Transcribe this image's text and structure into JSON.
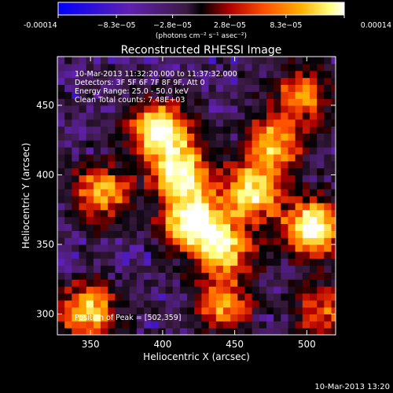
{
  "chart_data": {
    "type": "heatmap",
    "title": "Reconstructed RHESSI Image",
    "xlabel": "Heliocentric X (arcsec)",
    "ylabel": "Heliocentric Y (arcsec)",
    "xlim": [
      327,
      520
    ],
    "ylim": [
      285,
      485
    ],
    "x_ticks": [
      350,
      400,
      450,
      500
    ],
    "y_ticks": [
      300,
      350,
      400,
      450
    ],
    "colorbar": {
      "min": -0.00014,
      "max": 0.00014,
      "ticks": [
        {
          "value": -0.00014,
          "label": "-0.00014"
        },
        {
          "value": -8.3e-05,
          "label": "−8.3e−05"
        },
        {
          "value": -2.8e-05,
          "label": "−2.8e−05"
        },
        {
          "value": 2.8e-05,
          "label": "2.8e−05"
        },
        {
          "value": 8.3e-05,
          "label": "8.3e−05"
        },
        {
          "value": 0.00014,
          "label": "0.00014"
        }
      ],
      "unit_label": "(photons cm⁻² s⁻¹ asec⁻²)",
      "colormap": [
        "#0000ff",
        "#6020b0",
        "#3a1a40",
        "#000000",
        "#b00000",
        "#ff5000",
        "#ffb000",
        "#ffff80",
        "#ffffff"
      ]
    },
    "annotations": {
      "time_range": "10-Mar-2013 11:32:20.000 to 11:37:32.000",
      "detectors": "Detectors: 3F 5F 6F 7F 8F 9F, Att 0",
      "energy_range": "Energy Range: 25.0 - 50.0 keV",
      "method_counts": "Clean     Total counts: 7.48E+03",
      "peak": "Position of Peak = [502,359]"
    },
    "bright_regions": [
      {
        "x": 395,
        "y": 430,
        "strength": 1.0
      },
      {
        "x": 410,
        "y": 400,
        "strength": 0.9
      },
      {
        "x": 418,
        "y": 365,
        "strength": 1.0
      },
      {
        "x": 440,
        "y": 345,
        "strength": 0.8
      },
      {
        "x": 460,
        "y": 385,
        "strength": 0.85
      },
      {
        "x": 475,
        "y": 420,
        "strength": 0.7
      },
      {
        "x": 495,
        "y": 455,
        "strength": 0.6
      },
      {
        "x": 502,
        "y": 359,
        "strength": 1.0
      },
      {
        "x": 355,
        "y": 385,
        "strength": 0.7
      },
      {
        "x": 345,
        "y": 300,
        "strength": 0.8
      },
      {
        "x": 440,
        "y": 305,
        "strength": 0.6
      },
      {
        "x": 510,
        "y": 300,
        "strength": 0.5
      }
    ]
  },
  "footer": {
    "timestamp": "10-Mar-2013 13:20"
  }
}
